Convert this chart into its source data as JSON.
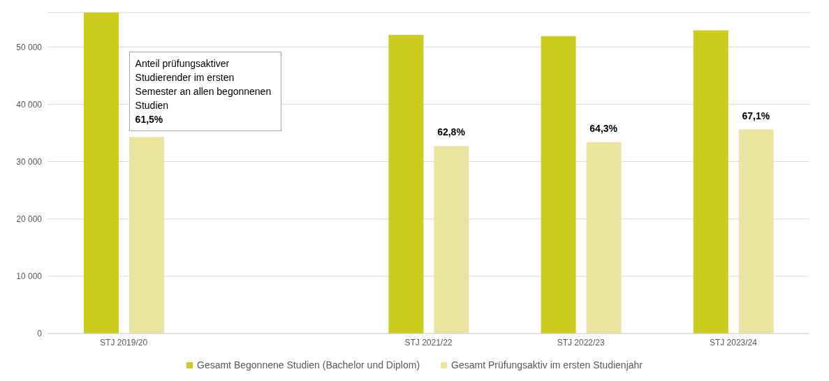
{
  "chart_data": {
    "type": "bar",
    "categories": [
      "STJ 2019/20",
      null,
      "STJ 2021/22",
      "STJ 2022/23",
      "STJ 2023/24"
    ],
    "series": [
      {
        "name": "Gesamt Begonnene Studien (Bachelor und Diplom)",
        "color": "#cccc1e",
        "values": [
          56000,
          null,
          52100,
          51900,
          52900
        ]
      },
      {
        "name": "Gesamt Prüfungsaktiv im ersten Studienjahr",
        "color": "#ebe49e",
        "values": [
          34300,
          null,
          32700,
          33400,
          35600
        ]
      }
    ],
    "ylim": [
      0,
      56000
    ],
    "yticks": [
      0,
      {
        "value": 10000,
        "label": "10 000"
      },
      {
        "value": 20000,
        "label": "20 000"
      },
      {
        "value": 30000,
        "label": "30 000"
      },
      {
        "value": 40000,
        "label": "40 000"
      },
      {
        "value": 50000,
        "label": "50 000"
      }
    ],
    "grid": "y",
    "legend": "bottom",
    "annotations": [
      "Anteil prüfungsaktiver Studierender im ersten Semester an allen begonnenen Studien",
      "61,5%",
      "62,8%",
      "64,3%",
      "67,1%"
    ]
  }
}
